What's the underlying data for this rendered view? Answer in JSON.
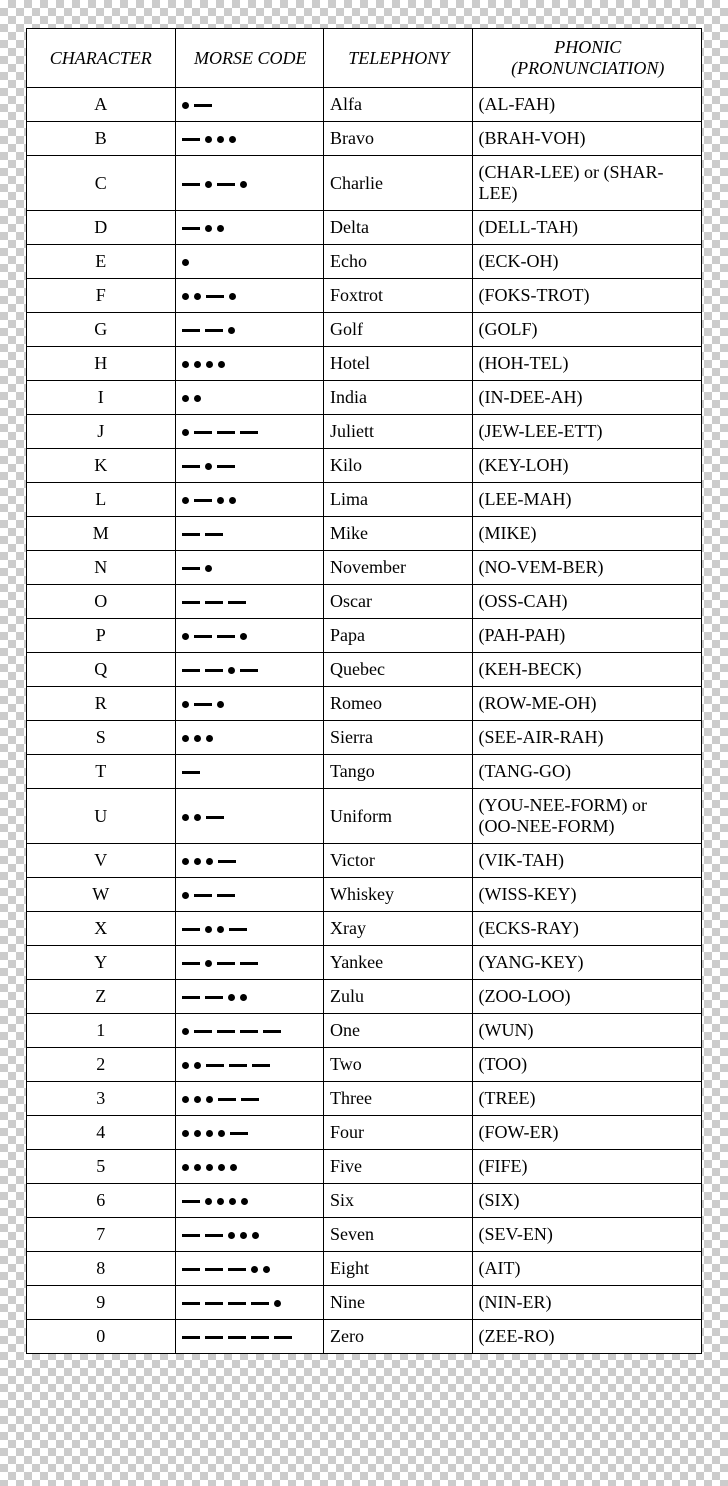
{
  "headers": {
    "character": "CHARACTER",
    "morse": "MORSE CODE",
    "telephony": "TELEPHONY",
    "phonic": "PHONIC (PRONUNCIATION)"
  },
  "rows": [
    {
      "char": "A",
      "morse": ". -",
      "telephony": "Alfa",
      "phonic": "(AL-FAH)"
    },
    {
      "char": "B",
      "morse": "- . . .",
      "telephony": "Bravo",
      "phonic": "(BRAH-VOH)"
    },
    {
      "char": "C",
      "morse": "- . - .",
      "telephony": "Charlie",
      "phonic": "(CHAR-LEE) or (SHAR-LEE)"
    },
    {
      "char": "D",
      "morse": "- . .",
      "telephony": "Delta",
      "phonic": "(DELL-TAH)"
    },
    {
      "char": "E",
      "morse": ".",
      "telephony": "Echo",
      "phonic": "(ECK-OH)"
    },
    {
      "char": "F",
      "morse": ". . - .",
      "telephony": "Foxtrot",
      "phonic": "(FOKS-TROT)"
    },
    {
      "char": "G",
      "morse": "- - .",
      "telephony": "Golf",
      "phonic": "(GOLF)"
    },
    {
      "char": "H",
      "morse": ". . . .",
      "telephony": "Hotel",
      "phonic": "(HOH-TEL)"
    },
    {
      "char": "I",
      "morse": ". .",
      "telephony": "India",
      "phonic": "(IN-DEE-AH)"
    },
    {
      "char": "J",
      "morse": ". - - -",
      "telephony": "Juliett",
      "phonic": "(JEW-LEE-ETT)"
    },
    {
      "char": "K",
      "morse": "- . -",
      "telephony": "Kilo",
      "phonic": "(KEY-LOH)"
    },
    {
      "char": "L",
      "morse": ". - . .",
      "telephony": "Lima",
      "phonic": "(LEE-MAH)"
    },
    {
      "char": "M",
      "morse": "- -",
      "telephony": "Mike",
      "phonic": "(MIKE)"
    },
    {
      "char": "N",
      "morse": "- .",
      "telephony": "November",
      "phonic": "(NO-VEM-BER)"
    },
    {
      "char": "O",
      "morse": "- - -",
      "telephony": "Oscar",
      "phonic": "(OSS-CAH)"
    },
    {
      "char": "P",
      "morse": ". - - .",
      "telephony": "Papa",
      "phonic": "(PAH-PAH)"
    },
    {
      "char": "Q",
      "morse": "- - . -",
      "telephony": "Quebec",
      "phonic": "(KEH-BECK)"
    },
    {
      "char": "R",
      "morse": ". - .",
      "telephony": "Romeo",
      "phonic": "(ROW-ME-OH)"
    },
    {
      "char": "S",
      "morse": ". . .",
      "telephony": "Sierra",
      "phonic": "(SEE-AIR-RAH)"
    },
    {
      "char": "T",
      "morse": "-",
      "telephony": "Tango",
      "phonic": "(TANG-GO)"
    },
    {
      "char": "U",
      "morse": ". . -",
      "telephony": "Uniform",
      "phonic": "(YOU-NEE-FORM) or\n(OO-NEE-FORM)"
    },
    {
      "char": "V",
      "morse": ". . . -",
      "telephony": "Victor",
      "phonic": "(VIK-TAH)"
    },
    {
      "char": "W",
      "morse": ". - -",
      "telephony": "Whiskey",
      "phonic": "(WISS-KEY)"
    },
    {
      "char": "X",
      "morse": "- . . -",
      "telephony": "Xray",
      "phonic": "(ECKS-RAY)"
    },
    {
      "char": "Y",
      "morse": "- . - -",
      "telephony": "Yankee",
      "phonic": "(YANG-KEY)"
    },
    {
      "char": "Z",
      "morse": "- - . .",
      "telephony": "Zulu",
      "phonic": "(ZOO-LOO)"
    },
    {
      "char": "1",
      "morse": ". - - - -",
      "telephony": "One",
      "phonic": "(WUN)"
    },
    {
      "char": "2",
      "morse": ". . - - -",
      "telephony": "Two",
      "phonic": "(TOO)"
    },
    {
      "char": "3",
      "morse": ". . . - -",
      "telephony": "Three",
      "phonic": "(TREE)"
    },
    {
      "char": "4",
      "morse": ". . . . -",
      "telephony": "Four",
      "phonic": "(FOW-ER)"
    },
    {
      "char": "5",
      "morse": ". . . . .",
      "telephony": "Five",
      "phonic": "(FIFE)"
    },
    {
      "char": "6",
      "morse": "- . . . .",
      "telephony": "Six",
      "phonic": "(SIX)"
    },
    {
      "char": "7",
      "morse": "- - . . .",
      "telephony": "Seven",
      "phonic": "(SEV-EN)"
    },
    {
      "char": "8",
      "morse": "- - - . .",
      "telephony": "Eight",
      "phonic": "(AIT)"
    },
    {
      "char": "9",
      "morse": "- - - - .",
      "telephony": "Nine",
      "phonic": "(NIN-ER)"
    },
    {
      "char": "0",
      "morse": "- - - - -",
      "telephony": "Zero",
      "phonic": "(ZEE-RO)"
    }
  ],
  "style": {
    "font_family": "Times New Roman",
    "table_bg": "#ffffff",
    "border_color": "#000000",
    "checker_light": "#ffffff",
    "checker_dark": "#cccccc",
    "header_fontsize": 18,
    "cell_fontsize": 18,
    "column_widths_pct": [
      22,
      22,
      22,
      34
    ]
  }
}
